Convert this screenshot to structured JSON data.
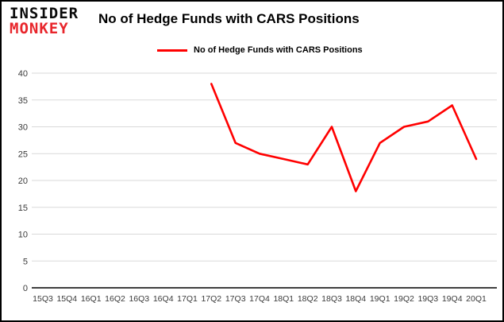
{
  "logo": {
    "line1": "INSIDER",
    "line2": "MONKEY"
  },
  "header": {
    "title": "No of Hedge Funds with CARS Positions"
  },
  "legend": {
    "label": "No of Hedge Funds with CARS Positions"
  },
  "colors": {
    "line": "#ff0000",
    "grid": "#d9d9d9",
    "axis_text": "#3a3a3a",
    "border": "#000000",
    "logo_red": "#e8262c",
    "background": "#ffffff"
  },
  "chart_data": {
    "type": "line",
    "title": "No of Hedge Funds with CARS Positions",
    "xlabel": "",
    "ylabel": "",
    "categories": [
      "15Q3",
      "15Q4",
      "16Q1",
      "16Q2",
      "16Q3",
      "16Q4",
      "17Q1",
      "17Q2",
      "17Q3",
      "17Q4",
      "18Q1",
      "18Q2",
      "18Q3",
      "18Q4",
      "19Q1",
      "19Q2",
      "19Q3",
      "19Q4",
      "20Q1"
    ],
    "series": [
      {
        "name": "No of Hedge Funds with CARS Positions",
        "color": "#ff0000",
        "values": [
          null,
          null,
          null,
          null,
          null,
          null,
          null,
          38,
          27,
          25,
          24,
          23,
          30,
          18,
          27,
          30,
          31,
          34,
          24
        ]
      }
    ],
    "ylim": [
      0,
      40
    ],
    "ytick_step": 5,
    "grid": "horizontal",
    "legend_position": "top-left"
  }
}
